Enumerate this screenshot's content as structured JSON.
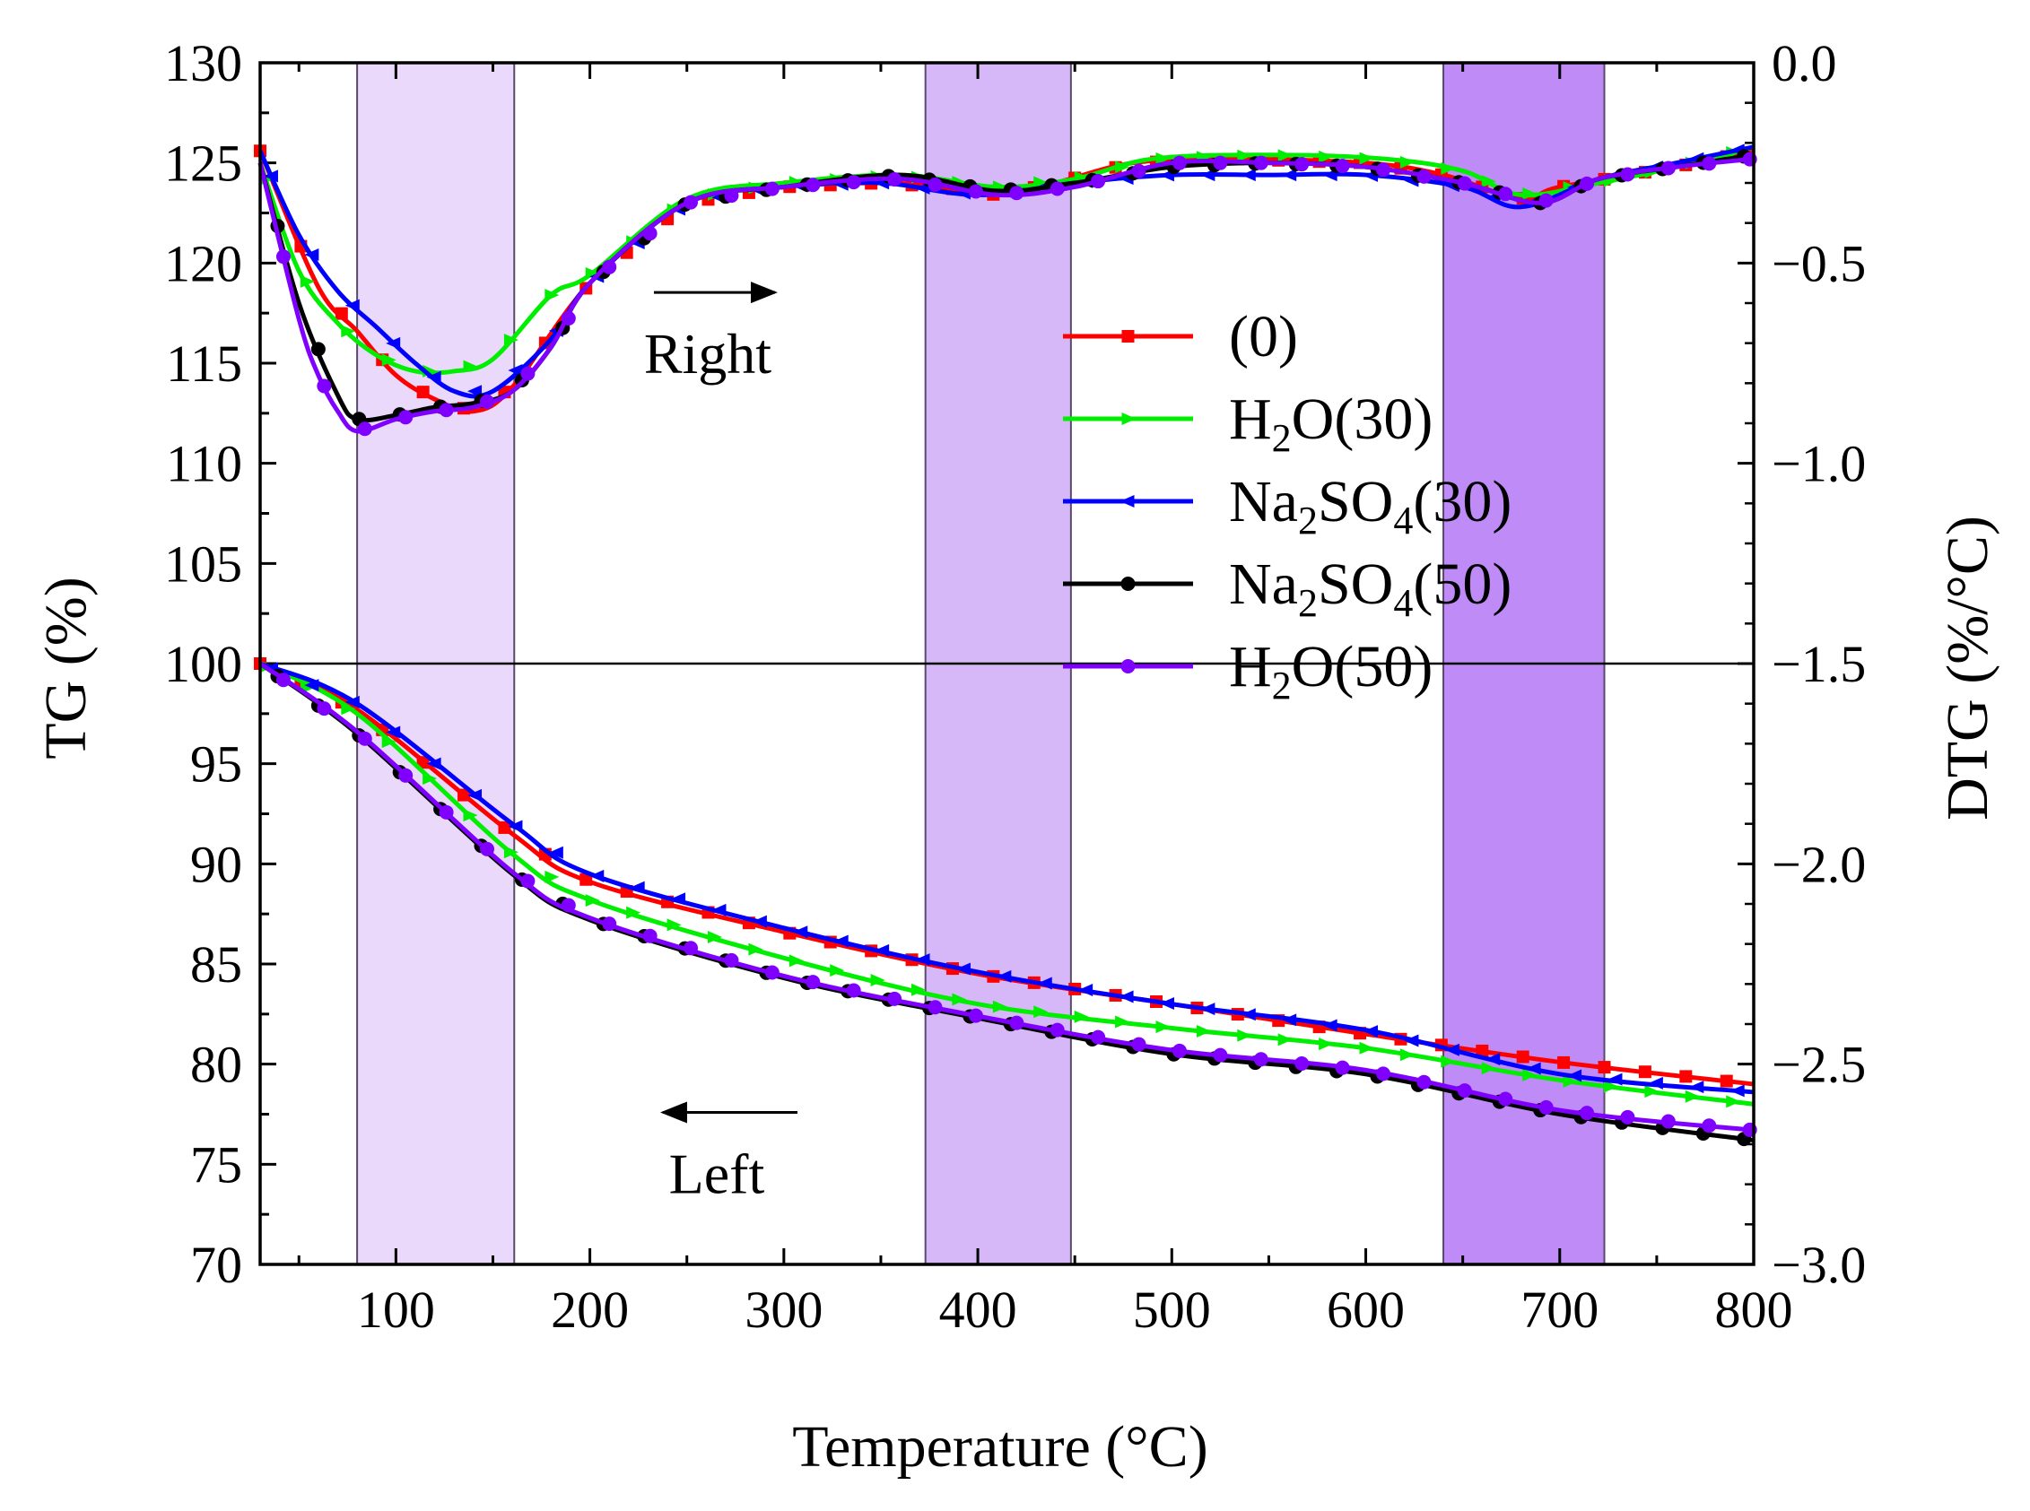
{
  "chart_data": {
    "type": "line",
    "title": "",
    "xlabel": "Temperature (°C)",
    "ylabel_left": "TG (%)",
    "ylabel_right": "DTG (%/°C)",
    "xlim": [
      30,
      800
    ],
    "ylim_left": [
      70,
      130
    ],
    "ylim_right": [
      -3.0,
      0.0
    ],
    "x_ticks": [
      "100",
      "200",
      "300",
      "400",
      "500",
      "600",
      "700",
      "800"
    ],
    "y_left_ticks": [
      "70",
      "75",
      "80",
      "85",
      "90",
      "95",
      "100",
      "105",
      "110",
      "115",
      "120",
      "125",
      "130"
    ],
    "y_right_ticks": [
      "0.0",
      "−0.5",
      "−1.0",
      "−1.5",
      "−2.0",
      "−2.5",
      "−3.0"
    ],
    "divider_tg_value": 100,
    "legend_position": "center-right",
    "shaded_regions": [
      {
        "x0": 80,
        "x1": 161,
        "color": "#ead9fb"
      },
      {
        "x0": 373,
        "x1": 448,
        "color": "#d6b8f9"
      },
      {
        "x0": 640,
        "x1": 723,
        "color": "#bf8bf7"
      }
    ],
    "annotations": [
      {
        "text": "Right",
        "x": 270,
        "y": 114.5,
        "arrow": "right"
      },
      {
        "text": "Left",
        "x": 270,
        "y": 80.5,
        "arrow": "left"
      }
    ],
    "legend": [
      {
        "series": "(0)",
        "label_main": "(0)",
        "formula": null
      },
      {
        "series": "H2O(30)",
        "label_main": "",
        "formula": {
          "a": "H",
          "sub1": "2",
          "b": "O",
          "sub2": "",
          "c": "(30)"
        }
      },
      {
        "series": "Na2SO4(30)",
        "label_main": "",
        "formula": {
          "a": "Na",
          "sub1": "2",
          "b": "SO",
          "sub2": "4",
          "c": "(30)"
        }
      },
      {
        "series": "Na2SO4(50)",
        "label_main": "",
        "formula": {
          "a": "Na",
          "sub1": "2",
          "b": "SO",
          "sub2": "4",
          "c": "(50)"
        }
      },
      {
        "series": "H2O(50)",
        "label_main": "",
        "formula": {
          "a": "H",
          "sub1": "2",
          "b": "O",
          "sub2": "",
          "c": "(50)"
        }
      }
    ],
    "series": [
      {
        "name": "(0)",
        "color": "#ff0000",
        "marker": "square",
        "tg": {
          "x": [
            30,
            80,
            160,
            200,
            300,
            400,
            500,
            600,
            700,
            800
          ],
          "y": [
            100,
            97.7,
            91.5,
            89.1,
            86.6,
            84.5,
            83.0,
            81.5,
            80.1,
            79.0
          ]
        },
        "dtg": {
          "x": [
            30,
            60,
            80,
            100,
            120,
            140,
            160,
            200,
            250,
            300,
            350,
            380,
            410,
            440,
            480,
            530,
            600,
            640,
            680,
            700,
            760,
            800
          ],
          "y": [
            -0.22,
            -0.56,
            -0.67,
            -0.78,
            -0.84,
            -0.87,
            -0.81,
            -0.55,
            -0.35,
            -0.31,
            -0.3,
            -0.31,
            -0.33,
            -0.3,
            -0.25,
            -0.24,
            -0.25,
            -0.28,
            -0.34,
            -0.31,
            -0.26,
            -0.22
          ]
        }
      },
      {
        "name": "H2O(30)",
        "color": "#00ee00",
        "marker": "triangle-right",
        "tg": {
          "x": [
            30,
            80,
            160,
            200,
            300,
            400,
            500,
            600,
            700,
            800
          ],
          "y": [
            100,
            97.5,
            90.5,
            88.2,
            85.3,
            83.0,
            81.8,
            80.8,
            79.2,
            78.0
          ]
        },
        "dtg": {
          "x": [
            30,
            50,
            70,
            90,
            110,
            130,
            150,
            180,
            200,
            250,
            300,
            360,
            410,
            450,
            490,
            550,
            610,
            650,
            680,
            720,
            760,
            800
          ],
          "y": [
            -0.25,
            -0.52,
            -0.65,
            -0.73,
            -0.77,
            -0.77,
            -0.74,
            -0.58,
            -0.53,
            -0.34,
            -0.3,
            -0.28,
            -0.31,
            -0.29,
            -0.24,
            -0.23,
            -0.24,
            -0.27,
            -0.33,
            -0.3,
            -0.26,
            -0.21
          ]
        }
      },
      {
        "name": "Na2SO4(30)",
        "color": "#0000ff",
        "marker": "triangle-left",
        "tg": {
          "x": [
            30,
            80,
            160,
            200,
            300,
            400,
            500,
            600,
            700,
            800
          ],
          "y": [
            100,
            98.0,
            92.0,
            89.5,
            86.8,
            84.6,
            83.0,
            81.7,
            79.5,
            78.6
          ]
        },
        "dtg": {
          "x": [
            30,
            50,
            70,
            90,
            110,
            130,
            150,
            180,
            200,
            250,
            300,
            350,
            400,
            450,
            500,
            550,
            600,
            650,
            680,
            720,
            760,
            800
          ],
          "y": [
            -0.22,
            -0.43,
            -0.57,
            -0.66,
            -0.75,
            -0.82,
            -0.82,
            -0.69,
            -0.55,
            -0.35,
            -0.31,
            -0.3,
            -0.33,
            -0.3,
            -0.28,
            -0.28,
            -0.28,
            -0.31,
            -0.36,
            -0.29,
            -0.25,
            -0.21
          ]
        }
      },
      {
        "name": "Na2SO4(50)",
        "color": "#000000",
        "marker": "circle",
        "tg": {
          "x": [
            30,
            80,
            160,
            200,
            300,
            400,
            500,
            600,
            700,
            800
          ],
          "y": [
            100,
            96.5,
            89.5,
            87.2,
            84.3,
            82.3,
            80.5,
            79.5,
            77.5,
            76.2
          ]
        },
        "dtg": {
          "x": [
            30,
            50,
            70,
            80,
            100,
            120,
            140,
            160,
            180,
            200,
            250,
            300,
            360,
            410,
            450,
            500,
            550,
            600,
            650,
            690,
            720,
            760,
            800
          ],
          "y": [
            -0.25,
            -0.6,
            -0.83,
            -0.89,
            -0.88,
            -0.86,
            -0.85,
            -0.82,
            -0.71,
            -0.55,
            -0.35,
            -0.31,
            -0.28,
            -0.32,
            -0.3,
            -0.26,
            -0.25,
            -0.26,
            -0.3,
            -0.35,
            -0.29,
            -0.26,
            -0.23
          ]
        }
      },
      {
        "name": "H2O(50)",
        "color": "#8000ff",
        "marker": "circle",
        "tg": {
          "x": [
            30,
            80,
            160,
            200,
            300,
            400,
            500,
            600,
            700,
            800
          ],
          "y": [
            100,
            96.6,
            89.6,
            87.3,
            84.4,
            82.4,
            80.7,
            79.7,
            77.7,
            76.7
          ]
        },
        "dtg": {
          "x": [
            30,
            50,
            60,
            70,
            80,
            100,
            120,
            140,
            160,
            180,
            200,
            250,
            300,
            360,
            410,
            450,
            500,
            550,
            600,
            650,
            690,
            720,
            760,
            800
          ],
          "y": [
            -0.25,
            -0.64,
            -0.78,
            -0.87,
            -0.92,
            -0.89,
            -0.87,
            -0.86,
            -0.82,
            -0.71,
            -0.55,
            -0.35,
            -0.31,
            -0.29,
            -0.33,
            -0.31,
            -0.25,
            -0.25,
            -0.26,
            -0.3,
            -0.35,
            -0.29,
            -0.26,
            -0.24
          ]
        }
      }
    ]
  }
}
